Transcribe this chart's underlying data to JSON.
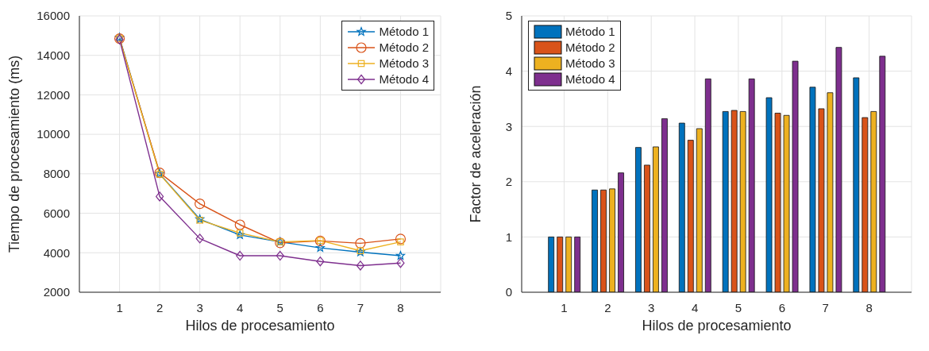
{
  "chart_data": [
    {
      "type": "line",
      "xlabel": "Hilos de procesamiento",
      "ylabel": "Tiempo de procesamiento (ms)",
      "x": [
        1,
        2,
        3,
        4,
        5,
        6,
        7,
        8
      ],
      "xlim": [
        0,
        9
      ],
      "xticks": [
        1,
        2,
        3,
        4,
        5,
        6,
        7,
        8
      ],
      "ylim": [
        2000,
        16000
      ],
      "yticks": [
        2000,
        4000,
        6000,
        8000,
        10000,
        12000,
        14000,
        16000
      ],
      "grid": true,
      "legend": "top right",
      "line_style": "solid",
      "series": [
        {
          "name": "Método 1",
          "color": "#0072bd",
          "marker": "star",
          "values": [
            14900,
            8000,
            5700,
            4900,
            4550,
            4250,
            4030,
            3850
          ]
        },
        {
          "name": "Método 2",
          "color": "#d95319",
          "marker": "circle",
          "values": [
            14850,
            8050,
            6480,
            5420,
            4500,
            4600,
            4480,
            4700
          ]
        },
        {
          "name": "Método 3",
          "color": "#edb120",
          "marker": "square",
          "values": [
            14850,
            7980,
            5650,
            5000,
            4550,
            4620,
            4100,
            4550
          ]
        },
        {
          "name": "Método 4",
          "color": "#7e2f8e",
          "marker": "diamond",
          "values": [
            14800,
            6850,
            4720,
            3850,
            3850,
            3560,
            3350,
            3480
          ]
        }
      ]
    },
    {
      "type": "bar",
      "xlabel": "Hilos de procesamiento",
      "ylabel": "Factor de aceleración",
      "categories": [
        "1",
        "2",
        "3",
        "4",
        "5",
        "6",
        "7",
        "8"
      ],
      "ylim": [
        0,
        5
      ],
      "yticks": [
        0,
        1,
        2,
        3,
        4,
        5
      ],
      "grid": true,
      "legend": "top left",
      "series": [
        {
          "name": "Método 1",
          "color": "#0072bd",
          "values": [
            1,
            1.85,
            2.62,
            3.06,
            3.27,
            3.52,
            3.71,
            3.88
          ]
        },
        {
          "name": "Método 2",
          "color": "#d95319",
          "values": [
            1,
            1.85,
            2.3,
            2.75,
            3.29,
            3.24,
            3.32,
            3.16
          ]
        },
        {
          "name": "Método 3",
          "color": "#edb120",
          "values": [
            1,
            1.87,
            2.63,
            2.96,
            3.27,
            3.2,
            3.61,
            3.27
          ]
        },
        {
          "name": "Método 4",
          "color": "#7e2f8e",
          "values": [
            1,
            2.16,
            3.14,
            3.86,
            3.86,
            4.18,
            4.43,
            4.27
          ]
        }
      ]
    }
  ]
}
